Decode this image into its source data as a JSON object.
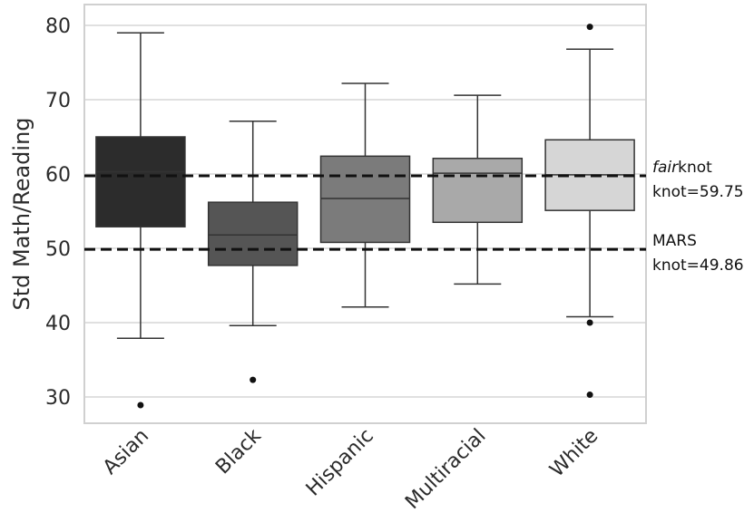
{
  "chart_data": {
    "type": "box",
    "title": "",
    "xlabel": "",
    "ylabel": "Std Math/Reading",
    "ylim": [
      26.5,
      83
    ],
    "yticks": [
      30,
      40,
      50,
      60,
      70,
      80
    ],
    "grid": "horizontal",
    "legend": "none",
    "categories": [
      "Asian",
      "Black",
      "Hispanic",
      "Multiracial",
      "White"
    ],
    "boxes": [
      {
        "category": "Asian",
        "whisker_low": 37.9,
        "q1": 52.9,
        "median": 60.3,
        "q3": 65.0,
        "whisker_high": 79.0,
        "outliers": [
          28.9
        ],
        "color": "#2c2c2c"
      },
      {
        "category": "Black",
        "whisker_low": 39.6,
        "q1": 47.7,
        "median": 51.8,
        "q3": 56.2,
        "whisker_high": 67.1,
        "outliers": [
          32.3
        ],
        "color": "#555555"
      },
      {
        "category": "Hispanic",
        "whisker_low": 42.1,
        "q1": 50.8,
        "median": 56.7,
        "q3": 62.4,
        "whisker_high": 72.2,
        "outliers": [],
        "color": "#7b7b7b"
      },
      {
        "category": "Multiracial",
        "whisker_low": 45.2,
        "q1": 53.5,
        "median": 60.1,
        "q3": 62.1,
        "whisker_high": 70.6,
        "outliers": [],
        "color": "#a9a9a9"
      },
      {
        "category": "White",
        "whisker_low": 40.8,
        "q1": 55.1,
        "median": 59.9,
        "q3": 64.6,
        "whisker_high": 76.8,
        "outliers": [
          79.8,
          40.0,
          30.3
        ],
        "color": "#d6d6d6"
      }
    ],
    "reference_lines": [
      {
        "y": 59.75,
        "style": "dashed",
        "label_italic": "fair",
        "label_line1": "knot",
        "label_line2": "knot=59.75"
      },
      {
        "y": 49.86,
        "style": "dashed",
        "label_line1": "MARS",
        "label_line2": "knot=49.86"
      }
    ]
  }
}
